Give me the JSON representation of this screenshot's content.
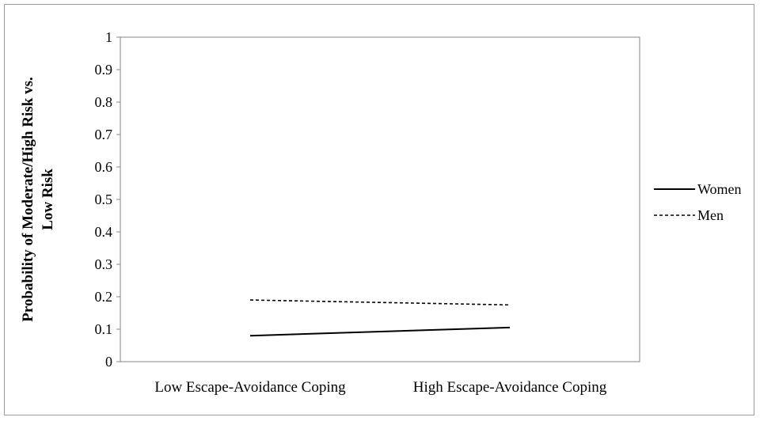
{
  "chart_data": {
    "type": "line",
    "categories": [
      "Low Escape-Avoidance Coping",
      "High Escape-Avoidance Coping"
    ],
    "series": [
      {
        "name": "Women",
        "values": [
          0.08,
          0.105
        ],
        "style": "solid",
        "color": "#000000"
      },
      {
        "name": "Men",
        "values": [
          0.19,
          0.175
        ],
        "style": "dashed",
        "color": "#000000"
      }
    ],
    "yticks": [
      "0",
      "0.1",
      "0.2",
      "0.3",
      "0.4",
      "0.5",
      "0.6",
      "0.7",
      "0.8",
      "0.9",
      "1"
    ],
    "ylim": [
      0,
      1
    ],
    "ylabel_line1": "Probability of Moderate/High Risk vs.",
    "ylabel_line2": "Low Risk",
    "xlabel": "",
    "title": "",
    "grid": false,
    "legend_position": "right"
  }
}
